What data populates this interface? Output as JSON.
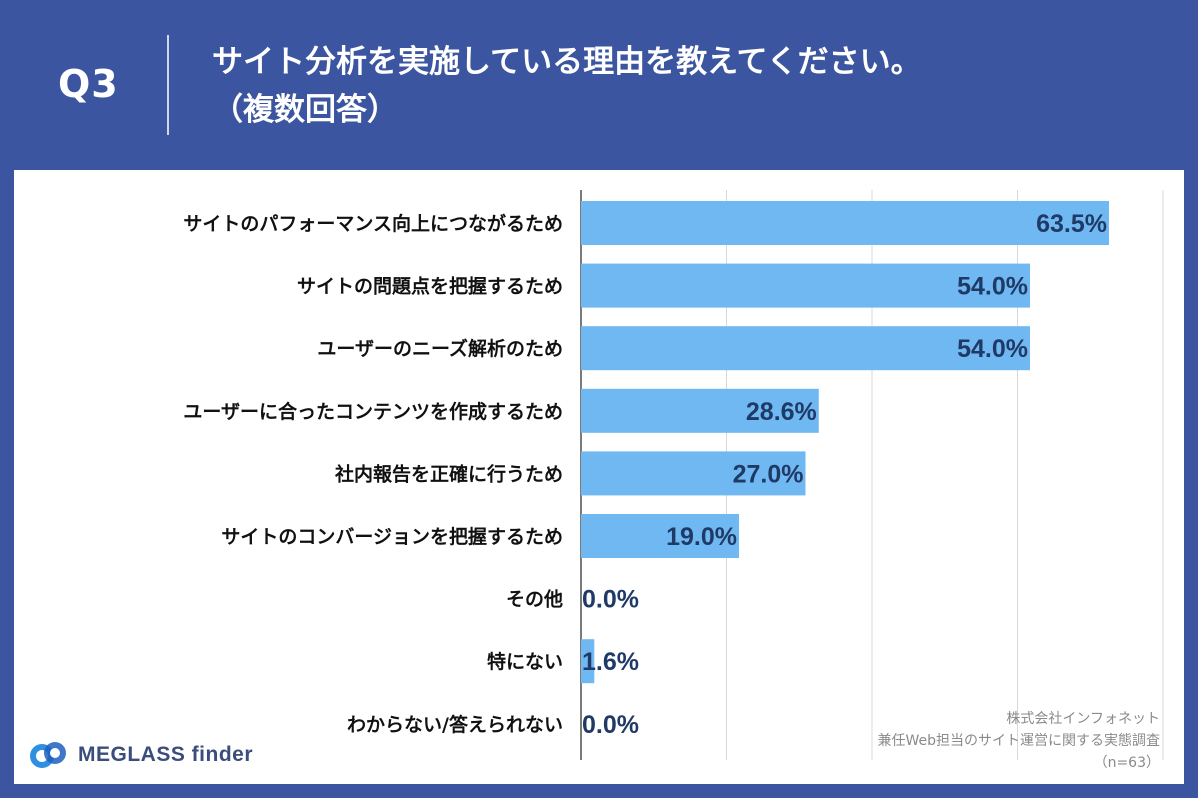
{
  "header": {
    "question_number": "Q3",
    "title_line1": "サイト分析を実施している理由を教えてください。",
    "title_line2": "（複数回答）"
  },
  "colors": {
    "background": "#3b55a0",
    "bar": "#6fb8f2",
    "value_text": "#1f3a66",
    "grid": "#d8d8d8"
  },
  "chart_data": {
    "type": "bar",
    "orientation": "horizontal",
    "categories": [
      "サイトのパフォーマンス向上につながるため",
      "サイトの問題点を把握するため",
      "ユーザーのニーズ解析のため",
      "ユーザーに合ったコンテンツを作成するため",
      "社内報告を正確に行うため",
      "サイトのコンバージョンを把握するため",
      "その他",
      "特にない",
      "わからない/答えられない"
    ],
    "values": [
      63.5,
      54.0,
      54.0,
      28.6,
      27.0,
      19.0,
      0.0,
      1.6,
      0.0
    ],
    "value_labels": [
      "63.5%",
      "54.0%",
      "54.0%",
      "28.6%",
      "27.0%",
      "19.0%",
      "0.0%",
      "1.6%",
      "0.0%"
    ],
    "xlim": [
      0,
      70
    ],
    "grid_step": 17.5,
    "unit": "%"
  },
  "footer": {
    "logo_text": "MEGLASS finder",
    "source_line1": "株式会社インフォネット",
    "source_line2": "兼任Web担当のサイト運営に関する実態調査",
    "source_line3": "（n=63）"
  }
}
